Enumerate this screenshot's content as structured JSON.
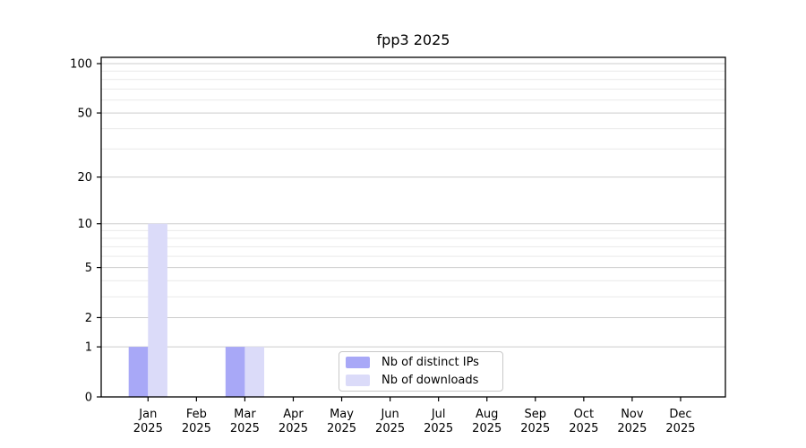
{
  "chart_data": {
    "type": "bar",
    "title": "fpp3 2025",
    "categories": [
      [
        "Jan",
        "2025"
      ],
      [
        "Feb",
        "2025"
      ],
      [
        "Mar",
        "2025"
      ],
      [
        "Apr",
        "2025"
      ],
      [
        "May",
        "2025"
      ],
      [
        "Jun",
        "2025"
      ],
      [
        "Jul",
        "2025"
      ],
      [
        "Aug",
        "2025"
      ],
      [
        "Sep",
        "2025"
      ],
      [
        "Oct",
        "2025"
      ],
      [
        "Nov",
        "2025"
      ],
      [
        "Dec",
        "2025"
      ]
    ],
    "series": [
      {
        "name": "Nb of distinct IPs",
        "color": "#a8a8f7",
        "values": [
          1,
          0,
          1,
          0,
          0,
          0,
          0,
          0,
          0,
          0,
          0,
          0
        ]
      },
      {
        "name": "Nb of downloads",
        "color": "#dbdbf9",
        "values": [
          10,
          0,
          1,
          0,
          0,
          0,
          0,
          0,
          0,
          0,
          0,
          0
        ]
      }
    ],
    "yscale": "log1p",
    "yticks": [
      0,
      1,
      2,
      5,
      10,
      20,
      50,
      100
    ],
    "minor_yticks": [
      3,
      4,
      6,
      7,
      8,
      9,
      30,
      40,
      60,
      70,
      80,
      90
    ],
    "ylim": [
      0,
      110
    ],
    "xlabel": "",
    "ylabel": "",
    "grid": "horizontal",
    "legend_position": "lower center",
    "colors": {
      "major_grid": "#cdcdcd",
      "minor_grid": "#e9e9e9",
      "axis": "#000000",
      "text": "#000000",
      "background": "#ffffff"
    }
  }
}
